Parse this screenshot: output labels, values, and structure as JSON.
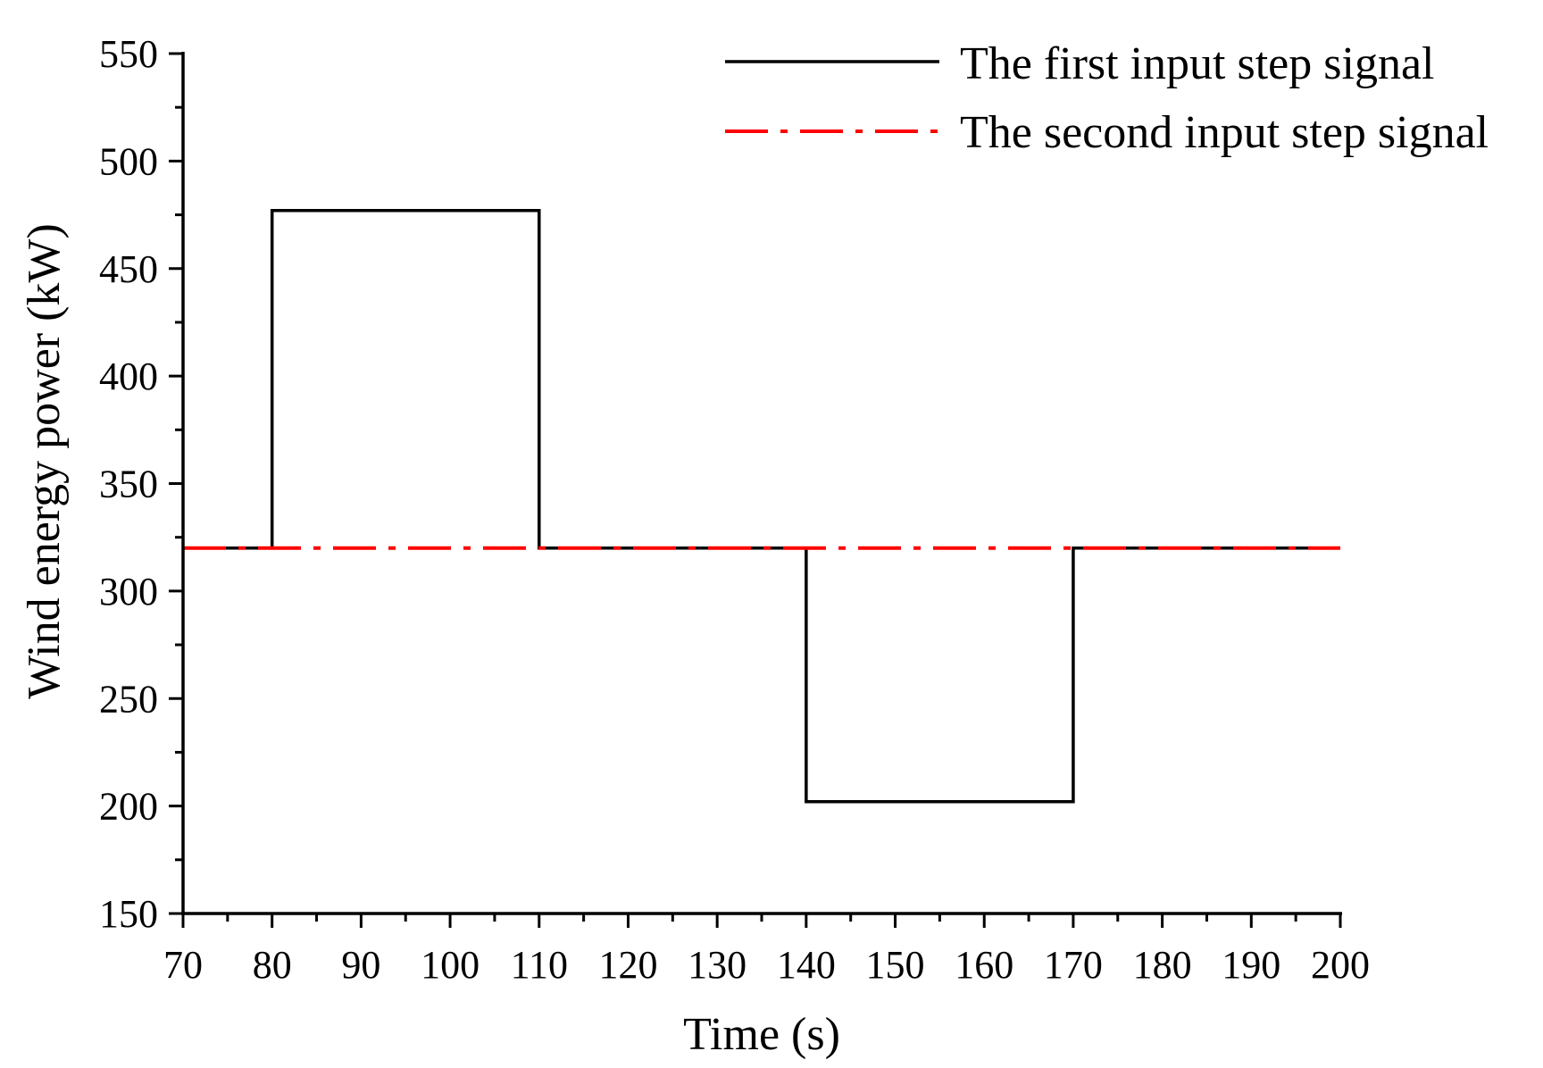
{
  "chart_data": {
    "type": "line",
    "title": "",
    "xlabel": "Time (s)",
    "ylabel": "Wind energy power (kW)",
    "xlim": [
      70,
      200
    ],
    "ylim": [
      150,
      550
    ],
    "xticks": [
      70,
      80,
      90,
      100,
      110,
      120,
      130,
      140,
      150,
      160,
      170,
      180,
      190,
      200
    ],
    "yticks": [
      150,
      200,
      250,
      300,
      350,
      400,
      450,
      500,
      550
    ],
    "grid": false,
    "legend_position": "top-right",
    "series": [
      {
        "name": "The first input step signal",
        "color": "#000000",
        "style": "solid",
        "x": [
          70,
          80,
          80,
          110,
          110,
          140,
          140,
          170,
          170,
          200
        ],
        "y": [
          320,
          320,
          477,
          477,
          320,
          320,
          202,
          202,
          320,
          320
        ]
      },
      {
        "name": "The second input step signal",
        "color": "#ff0000",
        "style": "dash-dot",
        "x": [
          70,
          200
        ],
        "y": [
          320,
          320
        ]
      }
    ]
  }
}
